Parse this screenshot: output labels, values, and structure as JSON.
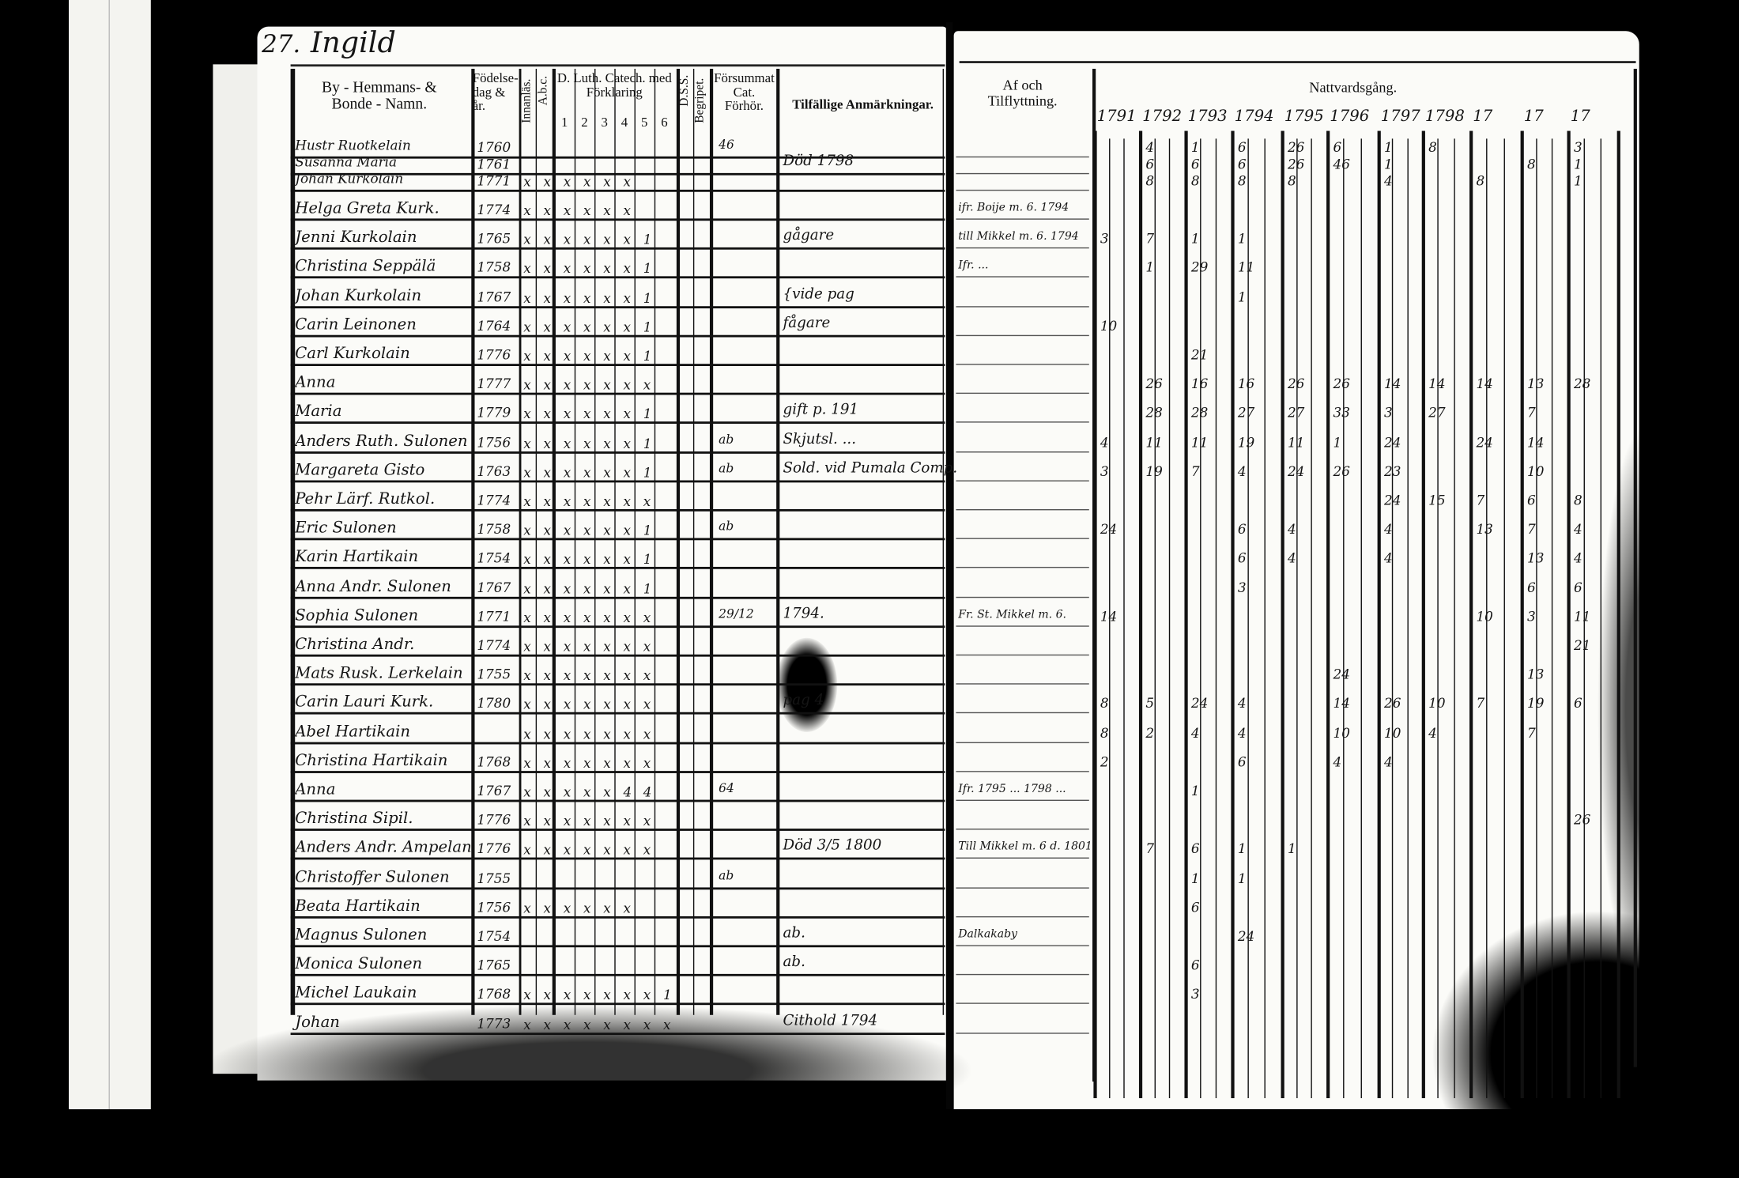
{
  "left_page": {
    "page_number": "27.",
    "village": "Ingild",
    "headers": {
      "name": "By - Hemmans- & Bonde - Namn.",
      "birth": "Födelse-dag & år.",
      "reading": "Innanläs.",
      "abc": "A.b.c.",
      "catechism": "D. Luth. Catech. med Förklaring",
      "catechism_parts": [
        "1",
        "2",
        "3",
        "4",
        "5",
        "6"
      ],
      "dss": "D.S.S.",
      "understood": "Begripet.",
      "missed": "Försummat Cat. Förhör.",
      "remarks": "Tilfällige Anmärkningar."
    },
    "rows": [
      {
        "name": "Hustr Ruotkelain",
        "birth": "1760",
        "marks": "",
        "remark": "",
        "missed": "46"
      },
      {
        "name": "Susanna Maria",
        "birth": "1761",
        "marks": "",
        "remark": "Död 1798",
        "missed": ""
      },
      {
        "name": "Johan Kurkolain",
        "birth": "1771",
        "marks": "x x x x x x",
        "remark": "",
        "missed": ""
      },
      {
        "name": "Helga Greta Kurk.",
        "birth": "1774",
        "marks": "x x x x x x",
        "remark": "",
        "missed": ""
      },
      {
        "name": "Jenni Kurkolain",
        "birth": "1765",
        "marks": "x x x x x x 1",
        "remark": "gågare",
        "missed": ""
      },
      {
        "name": "Christina Seppälä",
        "birth": "1758",
        "marks": "x x x x x x 1",
        "remark": "",
        "missed": ""
      },
      {
        "name": "Johan Kurkolain",
        "birth": "1767",
        "marks": "x x x x x x 1",
        "remark": "{vide pag",
        "missed": ""
      },
      {
        "name": "Carin Leinonen",
        "birth": "1764",
        "marks": "x x x x x x 1",
        "remark": "fågare",
        "missed": ""
      },
      {
        "name": "Carl Kurkolain",
        "birth": "1776",
        "marks": "x x x x x x 1",
        "remark": "",
        "missed": ""
      },
      {
        "name": "Anna",
        "birth": "1777",
        "marks": "x x x x x x x",
        "remark": "",
        "missed": ""
      },
      {
        "name": "Maria",
        "birth": "1779",
        "marks": "x x x x x x 1",
        "remark": "gift p. 191",
        "missed": ""
      },
      {
        "name": "Anders Ruth. Sulonen",
        "birth": "1756",
        "marks": "x x x x x x 1",
        "remark": "Skjutsl. ...",
        "missed": "ab"
      },
      {
        "name": "Margareta Gisto",
        "birth": "1763",
        "marks": "x x x x x x 1",
        "remark": "Sold. vid Pumala Comp.",
        "missed": "ab"
      },
      {
        "name": "Pehr Lärf. Rutkol.",
        "birth": "1774",
        "marks": "x x x x x x x",
        "remark": "",
        "missed": ""
      },
      {
        "name": "Eric Sulonen",
        "birth": "1758",
        "marks": "x x x x x x 1",
        "remark": "",
        "missed": "ab"
      },
      {
        "name": "Karin Hartikain",
        "birth": "1754",
        "marks": "x x x x x x 1",
        "remark": "",
        "missed": ""
      },
      {
        "name": "Anna Andr. Sulonen",
        "birth": "1767",
        "marks": "x x x x x x 1",
        "remark": "",
        "missed": ""
      },
      {
        "name": "Sophia Sulonen",
        "birth": "1771",
        "marks": "x x x x x x x",
        "remark": "1794.",
        "missed": "29/12"
      },
      {
        "name": "Christina Andr.",
        "birth": "1774",
        "marks": "x x x x x x x",
        "remark": "",
        "missed": ""
      },
      {
        "name": "Mats Rusk. Lerkelain",
        "birth": "1755",
        "marks": "x x x x x x x",
        "remark": "",
        "missed": ""
      },
      {
        "name": "Carin Lauri Kurk.",
        "birth": "1780",
        "marks": "x x x x x x x",
        "remark": "pag 4",
        "missed": ""
      },
      {
        "name": "Abel Hartikain",
        "birth": "",
        "marks": "x x x x x x x",
        "remark": "",
        "missed": ""
      },
      {
        "name": "Christina Hartikain",
        "birth": "1768",
        "marks": "x x x x x x x",
        "remark": "",
        "missed": ""
      },
      {
        "name": "Anna",
        "birth": "1767",
        "marks": "x x x x x 4 4",
        "remark": "",
        "missed": "64"
      },
      {
        "name": "Christina Sipil.",
        "birth": "1776",
        "marks": "x x x x x x x",
        "remark": "",
        "missed": ""
      },
      {
        "name": "Anders Andr. Ampelan",
        "birth": "1776",
        "marks": "x x x x x x x",
        "remark": "Död 3/5 1800",
        "missed": ""
      },
      {
        "name": "Christoffer Sulonen",
        "birth": "1755",
        "marks": "",
        "remark": "",
        "missed": "ab"
      },
      {
        "name": "Beata Hartikain",
        "birth": "1756",
        "marks": "x x x x x x",
        "remark": "",
        "missed": ""
      },
      {
        "name": "Magnus Sulonen",
        "birth": "1754",
        "marks": "",
        "remark": "ab.",
        "missed": ""
      },
      {
        "name": "Monica Sulonen",
        "birth": "1765",
        "marks": "",
        "remark": "ab.",
        "missed": ""
      },
      {
        "name": "Michel Laukain",
        "birth": "1768",
        "marks": "x x x x x x x 1",
        "remark": "",
        "missed": ""
      },
      {
        "name": "Johan",
        "birth": "1773",
        "marks": "x x x x x x x x",
        "remark": "Cithold 1794",
        "missed": ""
      }
    ]
  },
  "right_page": {
    "headers": {
      "moving": "Af och Tilflyttning.",
      "communion": "Nattvardsgång."
    },
    "years": [
      "1791",
      "1792",
      "1793",
      "1794",
      "1795",
      "1796",
      "1797",
      "1798",
      "17",
      "17",
      "17"
    ],
    "moving_notes": [
      "",
      "",
      "",
      "ifr. Boije m. 6. 1794",
      "till Mikkel m. 6. 1794",
      "Ifr. ...",
      "",
      "",
      "",
      "",
      "",
      "",
      "",
      "",
      "",
      "",
      "",
      "Fr. St. Mikkel m. 6.",
      "",
      "",
      "",
      "",
      "",
      "Ifr. 1795 ... 1798 ...",
      "",
      "Till Mikkel m. 6 d. 1801",
      "",
      "",
      "Dalkakaby",
      "",
      "",
      ""
    ],
    "communion": [
      [
        "",
        "4",
        "1",
        "6",
        "26",
        "6",
        "1",
        "8",
        "",
        "",
        "3"
      ],
      [
        "",
        "6",
        "6",
        "6",
        "26",
        "46",
        "1",
        "",
        "",
        "8",
        "1"
      ],
      [
        "",
        "8",
        "8",
        "8",
        "8",
        "",
        "4",
        "",
        "8",
        "",
        "1"
      ],
      [
        "",
        "",
        "",
        "",
        "",
        "",
        "",
        "",
        "",
        "",
        ""
      ],
      [
        "3",
        "7",
        "1",
        "1",
        "",
        "",
        "",
        "",
        "",
        "",
        ""
      ],
      [
        "",
        "1",
        "29",
        "11",
        "",
        "",
        "",
        "",
        "",
        "",
        ""
      ],
      [
        "",
        "",
        "",
        "1",
        "",
        "",
        "",
        "",
        "",
        "",
        ""
      ],
      [
        "10",
        "",
        "",
        "",
        "",
        "",
        "",
        "",
        "",
        "",
        ""
      ],
      [
        "",
        "",
        "21",
        "",
        "",
        "",
        "",
        "",
        "",
        "",
        ""
      ],
      [
        "",
        "26",
        "16",
        "16",
        "26",
        "26",
        "14",
        "14",
        "14",
        "13",
        "28"
      ],
      [
        "",
        "28",
        "28",
        "27",
        "27",
        "33",
        "3",
        "27",
        "",
        "7",
        ""
      ],
      [
        "4",
        "11",
        "11",
        "19",
        "11",
        "1",
        "24",
        "",
        "24",
        "14",
        ""
      ],
      [
        "3",
        "19",
        "7",
        "4",
        "24",
        "26",
        "23",
        "",
        "",
        "10",
        ""
      ],
      [
        "",
        "",
        "",
        "",
        "",
        "",
        "24",
        "15",
        "7",
        "6",
        "8"
      ],
      [
        "24",
        "",
        "",
        "6",
        "4",
        "",
        "4",
        "",
        "13",
        "7",
        "4"
      ],
      [
        "",
        "",
        "",
        "6",
        "4",
        "",
        "4",
        "",
        "",
        "13",
        "4"
      ],
      [
        "",
        "",
        "",
        "3",
        "",
        "",
        "",
        "",
        "",
        "6",
        "6"
      ],
      [
        "14",
        "",
        "",
        "",
        "",
        "",
        "",
        "",
        "10",
        "3",
        "11"
      ],
      [
        "",
        "",
        "",
        "",
        "",
        "",
        "",
        "",
        "",
        "",
        "21"
      ],
      [
        "",
        "",
        "",
        "",
        "",
        "24",
        "",
        "",
        "",
        "13",
        ""
      ],
      [
        "8",
        "5",
        "24",
        "4",
        "",
        "14",
        "26",
        "10",
        "7",
        "19",
        "6"
      ],
      [
        "8",
        "2",
        "4",
        "4",
        "",
        "10",
        "10",
        "4",
        "",
        "7",
        ""
      ],
      [
        "2",
        "",
        "",
        "6",
        "",
        "4",
        "4",
        "",
        "",
        "",
        ""
      ],
      [
        "",
        "",
        "1",
        "",
        "",
        "",
        "",
        "",
        "",
        "",
        ""
      ],
      [
        "",
        "",
        "",
        "",
        "",
        "",
        "",
        "",
        "",
        "",
        "26"
      ],
      [
        "",
        "7",
        "6",
        "1",
        "1",
        "",
        "",
        "",
        "",
        "",
        ""
      ],
      [
        "",
        "",
        "1",
        "1",
        "",
        "",
        "",
        "",
        "",
        "",
        ""
      ],
      [
        "",
        "",
        "6",
        "",
        "",
        "",
        "",
        "",
        "",
        "",
        ""
      ],
      [
        "",
        "",
        "",
        "24",
        "",
        "",
        "",
        "",
        "",
        "",
        ""
      ],
      [
        "",
        "",
        "6",
        "",
        "",
        "",
        "",
        "",
        "",
        "",
        ""
      ],
      [
        "",
        "",
        "3",
        "",
        "",
        "",
        "",
        "",
        "",
        "",
        ""
      ],
      [
        "",
        "",
        "",
        "",
        "",
        "",
        "",
        "",
        "",
        "",
        ""
      ]
    ]
  },
  "colors": {
    "paper": "#fbfbf8",
    "ink": "#111111",
    "background": "#000000"
  }
}
